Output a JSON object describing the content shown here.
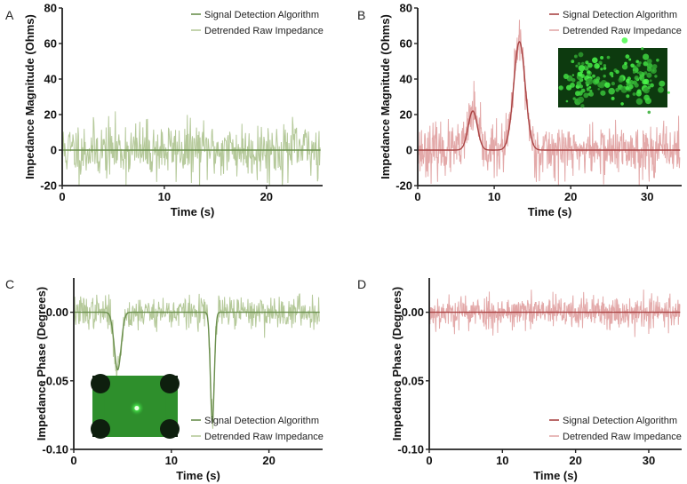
{
  "chart_data": [
    {
      "panel_label": "A",
      "type": "line",
      "xlabel": "Time (s)",
      "ylabel": "Impedance Magnitude (Ohms)",
      "xlim": [
        0,
        25.5
      ],
      "ylim": [
        -20,
        80
      ],
      "xticks": [
        0,
        10,
        20
      ],
      "xtick_labels": [
        "0",
        "10",
        "20"
      ],
      "yticks": [
        -20,
        0,
        20,
        40,
        60,
        80
      ],
      "ytick_labels": [
        "-20",
        "0",
        "20",
        "40",
        "60",
        "80"
      ],
      "legend_position": "top-right",
      "noise_color": "#b5c99a",
      "fit_color": "#6b8f4e",
      "noise": {
        "seed": 11,
        "step": 0.05,
        "std": 8,
        "peaks": [],
        "x_end": 25.3,
        "baseline": 0
      },
      "series": [
        {
          "name": "Signal Detection Algorithm",
          "kind": "fit",
          "note": "flat baseline at 0; no events detected"
        },
        {
          "name": "Detrended Raw Impedance",
          "kind": "noise",
          "note": "noise approximately ±18 Ohms"
        }
      ],
      "inset": null
    },
    {
      "panel_label": "B",
      "type": "line",
      "xlabel": "Time (s)",
      "ylabel": "Impedance Magnitude (Ohms)",
      "xlim": [
        0,
        34.5
      ],
      "ylim": [
        -20,
        80
      ],
      "xticks": [
        0,
        10,
        20,
        30
      ],
      "xtick_labels": [
        "0",
        "10",
        "20",
        "30"
      ],
      "yticks": [
        -20,
        0,
        20,
        40,
        60,
        80
      ],
      "ytick_labels": [
        "-20",
        "0",
        "20",
        "40",
        "60",
        "80"
      ],
      "legend_position": "top-right",
      "noise_color": "#e3a9a9",
      "fit_color": "#a94444",
      "noise": {
        "seed": 23,
        "step": 0.05,
        "std": 7,
        "peaks": [
          {
            "x": 7.2,
            "h": 22,
            "s": 0.6
          },
          {
            "x": 13.3,
            "h": 61,
            "s": 0.75
          }
        ],
        "x_end": 34.3,
        "baseline": 0
      },
      "series": [
        {
          "name": "Signal Detection Algorithm",
          "kind": "fit",
          "peaks": [
            {
              "x": 7.2,
              "amplitude": 22,
              "width": 0.6
            },
            {
              "x": 13.3,
              "amplitude": 61,
              "width": 0.75
            }
          ]
        },
        {
          "name": "Detrended Raw Impedance",
          "kind": "noise"
        }
      ],
      "inset": {
        "type": "fluorescence",
        "description_hidden": true
      }
    },
    {
      "panel_label": "C",
      "type": "line",
      "xlabel": "Time (s)",
      "ylabel": "Impedance Phase (Degrees)",
      "xlim": [
        0,
        25.5
      ],
      "ylim": [
        -0.1,
        0.025
      ],
      "xticks": [
        0,
        10,
        20
      ],
      "xtick_labels": [
        "0",
        "10",
        "20"
      ],
      "yticks": [
        -0.1,
        -0.05,
        0.0
      ],
      "ytick_labels": [
        "-0.10",
        "-0.05",
        "0.00"
      ],
      "legend_position": "bottom-right",
      "noise_color": "#b5c99a",
      "fit_color": "#6b8f4e",
      "noise": {
        "seed": 37,
        "step": 0.05,
        "std": 0.006,
        "peaks": [
          {
            "x": 4.5,
            "h": -0.042,
            "s": 0.35
          },
          {
            "x": 14.2,
            "h": -0.08,
            "s": 0.2
          }
        ],
        "x_end": 25.2,
        "baseline": 0
      },
      "series": [
        {
          "name": "Signal Detection Algorithm",
          "kind": "fit",
          "peaks": [
            {
              "x": 4.5,
              "amplitude": -0.042,
              "width": 0.35
            },
            {
              "x": 14.2,
              "amplitude": -0.08,
              "width": 0.2
            }
          ]
        },
        {
          "name": "Detrended Raw Impedance",
          "kind": "noise"
        }
      ],
      "inset": {
        "type": "fluorescence"
      }
    },
    {
      "panel_label": "D",
      "type": "line",
      "xlabel": "Time (s)",
      "ylabel": "Impedance Phase (Degrees)",
      "xlim": [
        0,
        34.5
      ],
      "ylim": [
        -0.1,
        0.025
      ],
      "xticks": [
        0,
        10,
        20,
        30
      ],
      "xtick_labels": [
        "0",
        "10",
        "20",
        "30"
      ],
      "yticks": [
        -0.1,
        -0.05,
        0.0
      ],
      "ytick_labels": [
        "-0.10",
        "-0.05",
        "0.00"
      ],
      "legend_position": "bottom-right",
      "noise_color": "#e3a9a9",
      "fit_color": "#a94444",
      "noise": {
        "seed": 53,
        "step": 0.05,
        "std": 0.006,
        "peaks": [],
        "x_end": 34.3,
        "baseline": 0
      },
      "series": [
        {
          "name": "Signal Detection Algorithm",
          "kind": "fit",
          "note": "flat baseline at 0"
        },
        {
          "name": "Detrended Raw Impedance",
          "kind": "noise"
        }
      ],
      "inset": null
    }
  ]
}
